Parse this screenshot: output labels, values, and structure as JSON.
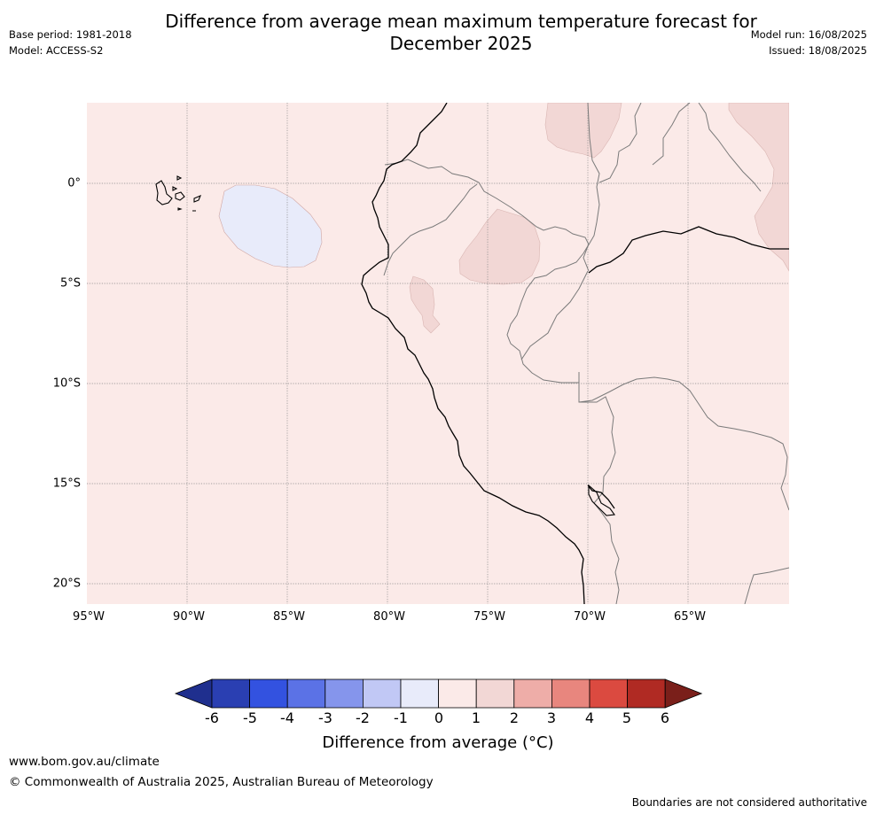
{
  "title": {
    "line1": "Difference from average mean maximum temperature forecast for",
    "line2": "December 2025"
  },
  "meta": {
    "base_period": "Base period: 1981-2018",
    "model": "Model: ACCESS-S2",
    "model_run": "Model run: 16/08/2025",
    "issued": "Issued: 18/08/2025"
  },
  "map": {
    "lon_ticks": [
      "95°W",
      "90°W",
      "85°W",
      "80°W",
      "75°W",
      "70°W",
      "65°W"
    ],
    "lat_ticks": [
      "0°",
      "5°S",
      "10°S",
      "15°S",
      "20°S"
    ],
    "regions": [
      {
        "name": "anomaly-0-to-1",
        "category": "0 to 1",
        "color": "#fbeae8"
      },
      {
        "name": "anomaly-1-to-2",
        "category": "1 to 2",
        "color": "#f2d7d5"
      },
      {
        "name": "anomaly-minus1-to-0",
        "category": "-1 to 0",
        "color": "#e8ebfa"
      }
    ]
  },
  "colorbar": {
    "ticks": [
      "-6",
      "-5",
      "-4",
      "-3",
      "-2",
      "-1",
      "0",
      "1",
      "2",
      "3",
      "4",
      "5",
      "6"
    ],
    "colors": [
      "#1f2f8e",
      "#2a3fb2",
      "#3352e0",
      "#5b72e6",
      "#8595ec",
      "#c1c8f5",
      "#e8ebfa",
      "#fbeae8",
      "#f2d7d5",
      "#eeada8",
      "#e8867e",
      "#db4a40",
      "#b02a23",
      "#7a1f1a"
    ],
    "label": "Difference from average (°C)"
  },
  "footer": {
    "url": "www.bom.gov.au/climate",
    "copyright": "© Commonwealth of Australia 2025, Australian Bureau of Meteorology",
    "disclaimer": "Boundaries are not considered authoritative"
  }
}
